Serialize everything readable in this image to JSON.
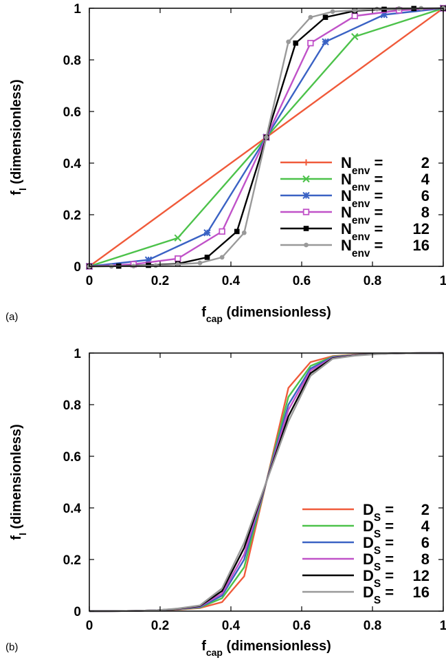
{
  "chart_data": [
    {
      "type": "line",
      "panel_label": "(a)",
      "xlabel": {
        "main": "f",
        "sub": "cap",
        "rest": " (dimensionless)"
      },
      "ylabel": {
        "main": "f",
        "sub": "l",
        "rest": " (dimensionless)"
      },
      "xlim": [
        0,
        1
      ],
      "ylim": [
        0,
        1
      ],
      "xticks": [
        0,
        0.2,
        0.4,
        0.6,
        0.8,
        1
      ],
      "xtick_labels": [
        "0",
        "0.2",
        "0.4",
        "0.6",
        "0.8",
        "1"
      ],
      "yticks": [
        0,
        0.2,
        0.4,
        0.6,
        0.8,
        1
      ],
      "ytick_labels": [
        "0",
        "0.2",
        "0.4",
        "0.6",
        "0.8",
        "1"
      ],
      "legend_placement": "bottom-right",
      "series": [
        {
          "name": {
            "main": "N",
            "sub": "env",
            "eq": " =",
            "num": "2"
          },
          "color": "#f05a3a",
          "marker": "plus",
          "x": [
            0,
            0.5,
            1
          ],
          "y": [
            0,
            0.5,
            1
          ]
        },
        {
          "name": {
            "main": "N",
            "sub": "env",
            "eq": " =",
            "num": "4"
          },
          "color": "#4cc24a",
          "marker": "x",
          "x": [
            0,
            0.25,
            0.5,
            0.75,
            1
          ],
          "y": [
            0,
            0.11,
            0.5,
            0.89,
            1
          ]
        },
        {
          "name": {
            "main": "N",
            "sub": "env",
            "eq": " =",
            "num": "6"
          },
          "color": "#3a62c4",
          "marker": "star",
          "x": [
            0,
            0.167,
            0.333,
            0.5,
            0.667,
            0.833,
            1
          ],
          "y": [
            0,
            0.025,
            0.13,
            0.5,
            0.87,
            0.975,
            1
          ]
        },
        {
          "name": {
            "main": "N",
            "sub": "env",
            "eq": " =",
            "num": "8"
          },
          "color": "#c052c8",
          "marker": "square-open",
          "x": [
            0,
            0.125,
            0.25,
            0.375,
            0.5,
            0.625,
            0.75,
            0.875,
            1
          ],
          "y": [
            0,
            0.008,
            0.03,
            0.135,
            0.5,
            0.865,
            0.97,
            0.992,
            1
          ]
        },
        {
          "name": {
            "main": "N",
            "sub": "env",
            "eq": " =",
            "num": "12"
          },
          "color": "#000000",
          "marker": "square",
          "x": [
            0,
            0.083,
            0.167,
            0.25,
            0.333,
            0.417,
            0.5,
            0.583,
            0.667,
            0.75,
            0.833,
            0.917,
            1
          ],
          "y": [
            0,
            0.001,
            0.004,
            0.01,
            0.035,
            0.135,
            0.5,
            0.865,
            0.965,
            0.99,
            0.996,
            0.999,
            1
          ]
        },
        {
          "name": {
            "main": "N",
            "sub": "env",
            "eq": " =",
            "num": "16"
          },
          "color": "#999999",
          "marker": "circle",
          "x": [
            0,
            0.0625,
            0.125,
            0.1875,
            0.25,
            0.3125,
            0.375,
            0.4375,
            0.5,
            0.5625,
            0.625,
            0.6875,
            0.75,
            0.8125,
            0.875,
            0.9375,
            1
          ],
          "y": [
            0,
            0.0002,
            0.001,
            0.003,
            0.008,
            0.013,
            0.035,
            0.13,
            0.5,
            0.87,
            0.965,
            0.987,
            0.992,
            0.997,
            0.999,
            0.9998,
            1
          ]
        }
      ]
    },
    {
      "type": "line",
      "panel_label": "(b)",
      "xlabel": {
        "main": "f",
        "sub": "cap",
        "rest": " (dimensionless)"
      },
      "ylabel": {
        "main": "f",
        "sub": "l",
        "rest": " (dimensionless)"
      },
      "xlim": [
        0,
        1
      ],
      "ylim": [
        0,
        1
      ],
      "xticks": [
        0,
        0.2,
        0.4,
        0.6,
        0.8,
        1
      ],
      "xtick_labels": [
        "0",
        "0.2",
        "0.4",
        "0.6",
        "0.8",
        "1"
      ],
      "yticks": [
        0,
        0.2,
        0.4,
        0.6,
        0.8,
        1
      ],
      "ytick_labels": [
        "0",
        "0.2",
        "0.4",
        "0.6",
        "0.8",
        "1"
      ],
      "legend_placement": "bottom-right",
      "series": [
        {
          "name": {
            "main": "D",
            "sub": "S",
            "eq": " =",
            "num": "2"
          },
          "color": "#f05a3a",
          "x": [
            0,
            0.0625,
            0.125,
            0.1875,
            0.25,
            0.3125,
            0.375,
            0.4375,
            0.5,
            0.5625,
            0.625,
            0.6875,
            0.75,
            0.8125,
            0.875,
            0.9375,
            1
          ],
          "y": [
            0,
            0.0002,
            0.001,
            0.003,
            0.006,
            0.012,
            0.035,
            0.135,
            0.5,
            0.865,
            0.965,
            0.988,
            0.994,
            0.997,
            0.999,
            0.9998,
            1
          ]
        },
        {
          "name": {
            "main": "D",
            "sub": "S",
            "eq": " =",
            "num": "4"
          },
          "color": "#4cc24a",
          "x": [
            0,
            0.0625,
            0.125,
            0.1875,
            0.25,
            0.3125,
            0.375,
            0.4375,
            0.5,
            0.5625,
            0.625,
            0.6875,
            0.75,
            0.8125,
            0.875,
            0.9375,
            1
          ],
          "y": [
            0,
            0.0002,
            0.001,
            0.003,
            0.007,
            0.014,
            0.05,
            0.17,
            0.5,
            0.83,
            0.95,
            0.986,
            0.993,
            0.997,
            0.999,
            0.9998,
            1
          ]
        },
        {
          "name": {
            "main": "D",
            "sub": "S",
            "eq": " =",
            "num": "6"
          },
          "color": "#3a62c4",
          "x": [
            0,
            0.0625,
            0.125,
            0.1875,
            0.25,
            0.3125,
            0.375,
            0.4375,
            0.5,
            0.5625,
            0.625,
            0.6875,
            0.75,
            0.8125,
            0.875,
            0.9375,
            1
          ],
          "y": [
            0,
            0.0002,
            0.001,
            0.003,
            0.008,
            0.016,
            0.06,
            0.2,
            0.5,
            0.8,
            0.94,
            0.984,
            0.992,
            0.997,
            0.999,
            0.9998,
            1
          ]
        },
        {
          "name": {
            "main": "D",
            "sub": "S",
            "eq": " =",
            "num": "8"
          },
          "color": "#c052c8",
          "x": [
            0,
            0.0625,
            0.125,
            0.1875,
            0.25,
            0.3125,
            0.375,
            0.4375,
            0.5,
            0.5625,
            0.625,
            0.6875,
            0.75,
            0.8125,
            0.875,
            0.9375,
            1
          ],
          "y": [
            0,
            0.0002,
            0.001,
            0.003,
            0.008,
            0.018,
            0.068,
            0.22,
            0.5,
            0.78,
            0.932,
            0.982,
            0.992,
            0.997,
            0.999,
            0.9998,
            1
          ]
        },
        {
          "name": {
            "main": "D",
            "sub": "S",
            "eq": " =",
            "num": "12"
          },
          "color": "#000000",
          "x": [
            0,
            0.0625,
            0.125,
            0.1875,
            0.25,
            0.3125,
            0.375,
            0.4375,
            0.5,
            0.5625,
            0.625,
            0.6875,
            0.75,
            0.8125,
            0.875,
            0.9375,
            1
          ],
          "y": [
            0,
            0.0002,
            0.001,
            0.003,
            0.009,
            0.02,
            0.078,
            0.245,
            0.5,
            0.755,
            0.922,
            0.98,
            0.991,
            0.997,
            0.999,
            0.9998,
            1
          ]
        },
        {
          "name": {
            "main": "D",
            "sub": "S",
            "eq": " =",
            "num": "16"
          },
          "color": "#999999",
          "x": [
            0,
            0.0625,
            0.125,
            0.1875,
            0.25,
            0.3125,
            0.375,
            0.4375,
            0.5,
            0.5625,
            0.625,
            0.6875,
            0.75,
            0.8125,
            0.875,
            0.9375,
            1
          ],
          "y": [
            0,
            0.0002,
            0.001,
            0.003,
            0.01,
            0.022,
            0.088,
            0.265,
            0.5,
            0.735,
            0.912,
            0.978,
            0.99,
            0.996,
            0.999,
            0.9998,
            1
          ]
        }
      ]
    }
  ]
}
